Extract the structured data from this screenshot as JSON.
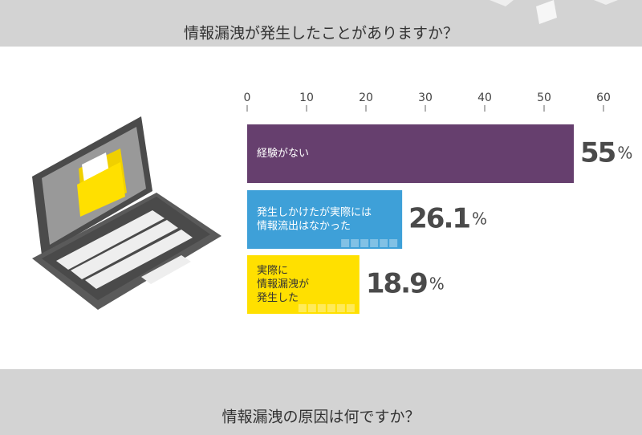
{
  "header": {
    "title": "情報漏洩が発生したことがありますか？"
  },
  "footer": {
    "title": "情報漏洩の原因は何ですか？"
  },
  "chart_data": {
    "type": "bar",
    "orientation": "horizontal",
    "categories": [
      [
        "経験がない"
      ],
      [
        "発生しかけたが実際には",
        "情報流出はなかった"
      ],
      [
        "実際に",
        "情報漏洩が",
        "発生した"
      ]
    ],
    "values": [
      55,
      26.1,
      18.9
    ],
    "value_labels": [
      "55%",
      "26.1%",
      "18.9%"
    ],
    "colors": [
      "#663f6e",
      "#3ea0d8",
      "#ffe000"
    ],
    "xlim": [
      0,
      60
    ],
    "xticks": [
      0,
      10,
      20,
      30,
      40,
      50,
      60
    ]
  }
}
